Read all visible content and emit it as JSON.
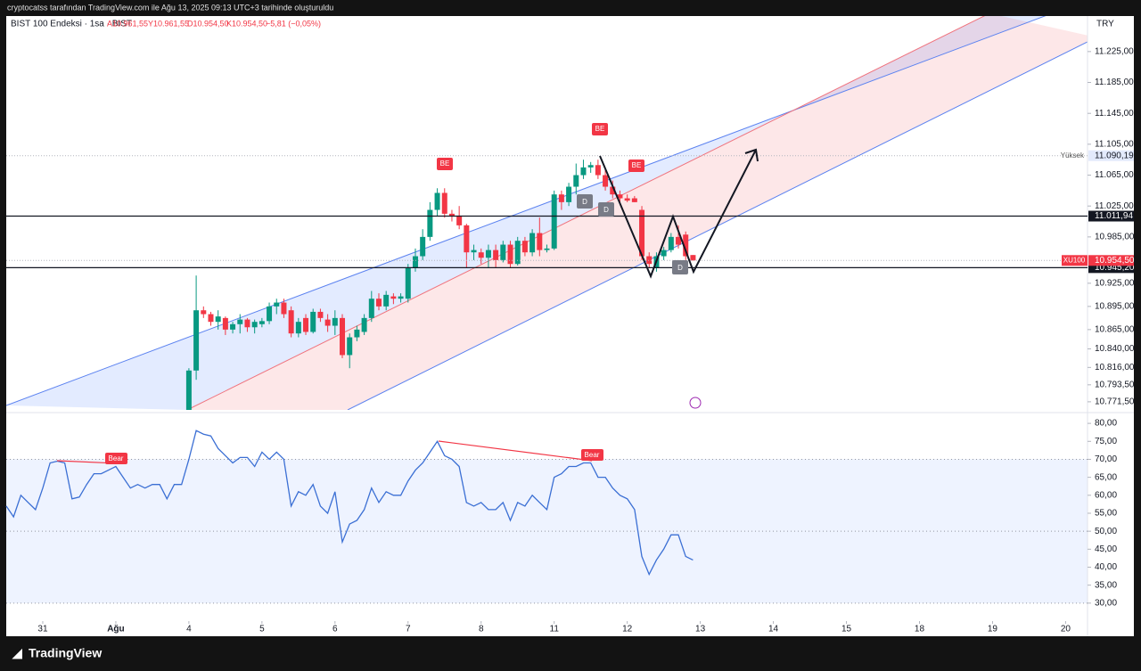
{
  "header": {
    "credit": "cryptocatss tarafından TradingView.com ile Ağu 13, 2025 09:13 UTC+3 tarihinde oluşturuldu",
    "currency": "TRY",
    "brand": "TradingView"
  },
  "chart_data": [
    {
      "type": "candlestick",
      "title": "BIST 100 Endeksi · 1sa · BIST",
      "ohlc": [
        "A10.961,55",
        "Y10.961,55",
        "D10.954,50",
        "K10.954,50",
        "−5,81 (−0,05%)"
      ],
      "up_color": "#089981",
      "down_color": "#f23645",
      "x": [
        25,
        26,
        27,
        28,
        29,
        30,
        31,
        32,
        33,
        34,
        35,
        36,
        37,
        38,
        39,
        40,
        41,
        42,
        43,
        44,
        45,
        46,
        47,
        48,
        49,
        50,
        51,
        52,
        53,
        54,
        55,
        56,
        57,
        58,
        59,
        60,
        61,
        62,
        63,
        64,
        65,
        66,
        67,
        68,
        69,
        70,
        71,
        72,
        73,
        74,
        75,
        76,
        77,
        78,
        79,
        80,
        81,
        82,
        83,
        84,
        85,
        86,
        87,
        88,
        89,
        90,
        91,
        92,
        93,
        94
      ],
      "open": [
        10755,
        10812,
        10890,
        10885,
        10875,
        10880,
        10865,
        10872,
        10878,
        10868,
        10872,
        10876,
        10895,
        10900,
        10890,
        10860,
        10880,
        10862,
        10888,
        10878,
        10870,
        10880,
        10832,
        10855,
        10862,
        10880,
        10905,
        10895,
        10908,
        10905,
        10905,
        10945,
        10960,
        10985,
        11020,
        11042,
        11015,
        11012,
        11000,
        10965,
        10965,
        10958,
        10968,
        10955,
        10975,
        10950,
        10980,
        10965,
        10990,
        10968,
        10970,
        11040,
        11030,
        11050,
        11065,
        11075,
        11078,
        11065,
        11050,
        11040,
        11035,
        11035,
        11020,
        10960,
        10945,
        10960,
        10968,
        10985,
        10988,
        10961.55
      ],
      "high": [
        10815,
        10935,
        10895,
        10888,
        10890,
        10882,
        10875,
        10885,
        10880,
        10878,
        10880,
        10900,
        10905,
        10905,
        10895,
        10880,
        10885,
        10892,
        10892,
        10885,
        10890,
        10885,
        10860,
        10870,
        10885,
        10915,
        10912,
        10915,
        10912,
        10912,
        10950,
        10970,
        10995,
        11030,
        11048,
        11048,
        11020,
        11025,
        11002,
        10975,
        10970,
        10975,
        10975,
        10980,
        10980,
        10985,
        10985,
        10995,
        11010,
        10975,
        11045,
        11045,
        11055,
        11080,
        11085,
        11082,
        11085,
        11072,
        11058,
        11045,
        11040,
        11038,
        11025,
        10965,
        10965,
        10972,
        10990,
        11000,
        10992,
        10961.55
      ],
      "low": [
        10750,
        10800,
        10880,
        10870,
        10865,
        10858,
        10860,
        10860,
        10862,
        10860,
        10868,
        10872,
        10885,
        10880,
        10855,
        10855,
        10858,
        10860,
        10875,
        10862,
        10858,
        10828,
        10815,
        10850,
        10858,
        10875,
        10890,
        10890,
        10898,
        10900,
        10900,
        10940,
        10955,
        10980,
        11012,
        11010,
        11005,
        10995,
        10945,
        10955,
        10950,
        10945,
        10945,
        10952,
        10945,
        10948,
        10960,
        10960,
        10960,
        10965,
        10968,
        11020,
        11025,
        11040,
        11060,
        11068,
        11060,
        11045,
        11035,
        11028,
        11030,
        11030,
        10955,
        10945,
        10940,
        10955,
        10965,
        10970,
        10955,
        10954.5
      ],
      "close": [
        10812,
        10890,
        10885,
        10875,
        10882,
        10865,
        10872,
        10878,
        10868,
        10875,
        10876,
        10895,
        10900,
        10885,
        10860,
        10875,
        10862,
        10888,
        10880,
        10870,
        10880,
        10832,
        10855,
        10865,
        10880,
        10905,
        10895,
        10910,
        10905,
        10908,
        10945,
        10960,
        10985,
        11020,
        11042,
        11015,
        11012,
        11000,
        10965,
        10968,
        10958,
        10968,
        10955,
        10975,
        10950,
        10980,
        10965,
        10990,
        10968,
        10970,
        11040,
        11030,
        11050,
        11065,
        11075,
        11078,
        11065,
        11050,
        11040,
        11035,
        11032,
        11030,
        10960,
        10950,
        10960,
        10968,
        10985,
        10975,
        10960,
        10954.5
      ],
      "xlim": [
        0,
        148
      ],
      "xticks": [
        {
          "value": 5,
          "label": "31"
        },
        {
          "value": 15,
          "label": "Ağu"
        },
        {
          "value": 25,
          "label": "4"
        },
        {
          "value": 35,
          "label": "5"
        },
        {
          "value": 45,
          "label": "6"
        },
        {
          "value": 55,
          "label": "7"
        },
        {
          "value": 65,
          "label": "8"
        },
        {
          "value": 75,
          "label": "11"
        },
        {
          "value": 85,
          "label": "12"
        },
        {
          "value": 95,
          "label": "13"
        },
        {
          "value": 105,
          "label": "14"
        },
        {
          "value": 115,
          "label": "15"
        },
        {
          "value": 125,
          "label": "18"
        },
        {
          "value": 135,
          "label": "19"
        },
        {
          "value": 145,
          "label": "20"
        }
      ],
      "ylim": [
        10761,
        11271
      ],
      "yticks": [
        {
          "value": 11225,
          "label": "11.225,00"
        },
        {
          "value": 11185,
          "label": "11.185,00"
        },
        {
          "value": 11145,
          "label": "11.145,00"
        },
        {
          "value": 11105,
          "label": "11.105,00"
        },
        {
          "value": 11065,
          "label": "11.065,00"
        },
        {
          "value": 11025,
          "label": "11.025,00"
        },
        {
          "value": 10985,
          "label": "10.985,00"
        },
        {
          "value": 10925,
          "label": "10.925,00"
        },
        {
          "value": 10895,
          "label": "10.895,00"
        },
        {
          "value": 10865,
          "label": "10.865,00"
        },
        {
          "value": 10840,
          "label": "10.840,00"
        },
        {
          "value": 10816,
          "label": "10.816,00"
        },
        {
          "value": 10793.5,
          "label": "10.793,50"
        },
        {
          "value": 10771.5,
          "label": "10.771,50"
        }
      ],
      "levels": [
        {
          "value": 11011.94,
          "label": "11.011,94"
        },
        {
          "value": 10945.2,
          "label": "10.945,20"
        }
      ],
      "high_line": {
        "name": "Yüksek",
        "value": 11090.19,
        "label": "11.090,19"
      },
      "last_price": {
        "name": "XU100",
        "value": 10954.5,
        "label": "10.954,50"
      },
      "annotations": [
        "BE",
        "BE",
        "BE",
        "D",
        "D",
        "D"
      ]
    },
    {
      "type": "line",
      "color": "#3b6fd4",
      "x": [
        0,
        1,
        2,
        3,
        4,
        5,
        6,
        7,
        8,
        9,
        10,
        11,
        12,
        13,
        14,
        15,
        16,
        17,
        18,
        19,
        20,
        21,
        22,
        23,
        24,
        25,
        26,
        27,
        28,
        29,
        30,
        31,
        32,
        33,
        34,
        35,
        36,
        37,
        38,
        39,
        40,
        41,
        42,
        43,
        44,
        45,
        46,
        47,
        48,
        49,
        50,
        51,
        52,
        53,
        54,
        55,
        56,
        57,
        58,
        59,
        60,
        61,
        62,
        63,
        64,
        65,
        66,
        67,
        68,
        69,
        70,
        71,
        72,
        73,
        74,
        75,
        76,
        77,
        78,
        79,
        80,
        81,
        82,
        83,
        84,
        85,
        86,
        87,
        88,
        89,
        90,
        91,
        92,
        93,
        94
      ],
      "values": [
        57,
        54,
        60,
        58,
        56,
        62,
        69,
        69.5,
        69,
        59,
        59.5,
        63,
        66,
        66,
        67,
        68,
        65,
        62,
        63,
        62,
        63,
        63,
        59,
        63,
        63,
        70,
        78,
        77,
        76.5,
        73,
        71,
        69,
        70.5,
        70.5,
        68,
        72,
        70,
        72,
        70,
        57,
        61,
        60,
        63,
        57,
        55,
        61,
        47,
        52,
        53,
        56,
        62,
        58,
        61,
        60,
        60,
        64,
        67,
        69,
        72,
        75,
        71,
        70,
        68,
        58,
        57,
        58,
        56,
        56,
        58,
        53,
        58,
        57,
        60,
        58,
        56,
        65,
        66,
        68,
        68,
        69,
        69,
        65,
        65,
        62,
        60,
        59,
        56,
        43,
        38,
        42,
        45,
        49,
        49,
        43,
        42
      ],
      "xlim": [
        0,
        148
      ],
      "ylim": [
        25,
        83
      ],
      "yticks": [
        {
          "value": 80,
          "label": "80,00"
        },
        {
          "value": 75,
          "label": "75,00"
        },
        {
          "value": 70,
          "label": "70,00"
        },
        {
          "value": 65,
          "label": "65,00"
        },
        {
          "value": 60,
          "label": "60,00"
        },
        {
          "value": 55,
          "label": "55,00"
        },
        {
          "value": 50,
          "label": "50,00"
        },
        {
          "value": 45,
          "label": "45,00"
        },
        {
          "value": 40,
          "label": "40,00"
        },
        {
          "value": 35,
          "label": "35,00"
        },
        {
          "value": 30,
          "label": "30,00"
        }
      ],
      "levels": [
        70,
        50,
        30
      ],
      "annotations": [
        "Bear",
        "Bear"
      ]
    }
  ]
}
